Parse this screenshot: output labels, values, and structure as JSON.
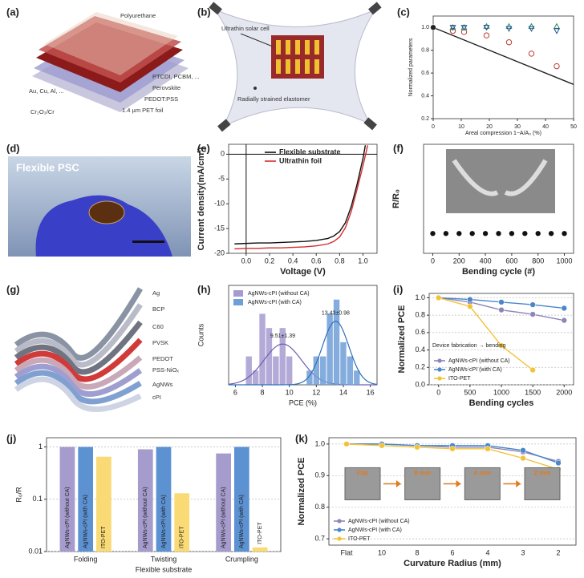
{
  "figures": [
    {
      "panel": "(a)",
      "labels": [
        "Polyurethane",
        "PTCDI, PCBM, ...",
        "Perovskite",
        "PEDOT:PSS",
        "1.4 µm PET foil",
        "Au, Cu, Al, ...",
        "Cr₂O₃/Cr"
      ]
    },
    {
      "panel": "(b)",
      "labels": [
        "Ultrathin solar cell",
        "Radially strained elastomer"
      ]
    },
    {
      "panel": "(d)",
      "labels": [
        "Flexible PSC"
      ]
    },
    {
      "panel": "(g)",
      "labels": [
        "Ag",
        "BCP",
        "C60",
        "PVSK",
        "PEDOT",
        "PSS-NiOₓ",
        "AgNWs",
        "cPI"
      ]
    }
  ],
  "chart_data": [
    {
      "panel": "(c)",
      "type": "scatter",
      "xlabel": "Areal compression 1−A/A₀ (%)",
      "ylabel": "Normalized parameters",
      "xlim": [
        0,
        50
      ],
      "xticks": [
        0,
        10,
        20,
        30,
        40,
        50
      ],
      "ylim": [
        0.2,
        1.1
      ],
      "yticks": [
        0.2,
        0.4,
        0.6,
        0.8,
        {
          "value": 1,
          "label": "1.0"
        }
      ],
      "series": [
        {
          "color": "#c0392b",
          "marker": "circle-open",
          "x": [
            7,
            11,
            19,
            27,
            35,
            44
          ],
          "values": [
            0.97,
            0.96,
            0.93,
            0.87,
            0.77,
            0.66
          ]
        },
        {
          "color": "#2e8b57",
          "marker": "triangle-open",
          "x": [
            7,
            11,
            19,
            27,
            35,
            44
          ],
          "values": [
            1,
            1,
            1.01,
            1.01,
            1.01,
            1.01
          ]
        },
        {
          "color": "#1f4e9c",
          "marker": "triangle-down-open",
          "x": [
            7,
            11,
            19,
            27,
            35,
            44
          ],
          "values": [
            1,
            1,
            1,
            0.99,
            0.99,
            0.97
          ]
        },
        {
          "color": "#222222",
          "style": "line",
          "marker": "dot-first",
          "x": [
            0,
            50
          ],
          "values": [
            1,
            0.5
          ]
        }
      ]
    },
    {
      "panel": "(e)",
      "type": "line",
      "xlabel": "Voltage (V)",
      "ylabel": "Current density(mA/cm²)",
      "zero_lines": true,
      "legend": "upper right",
      "xlim": [
        -0.15,
        1.12
      ],
      "xticks": [
        {
          "value": 0,
          "label": "0.0"
        },
        {
          "value": 0.2,
          "label": "0.2"
        },
        {
          "value": 0.4,
          "label": "0.4"
        },
        {
          "value": 0.6,
          "label": "0.6"
        },
        {
          "value": 0.8,
          "label": "0.8"
        },
        {
          "value": 1,
          "label": "1.0"
        }
      ],
      "ylim": [
        -20,
        2
      ],
      "yticks": [
        -20,
        -15,
        -10,
        -5,
        0
      ],
      "series": [
        {
          "name": "Flexible substrate",
          "color": "#111111",
          "x": [
            -0.1,
            0,
            0.1,
            0.2,
            0.3,
            0.4,
            0.5,
            0.6,
            0.7,
            0.75,
            0.8,
            0.85,
            0.9,
            0.95,
            1,
            1.02
          ],
          "values": [
            -18.1,
            -18,
            -17.9,
            -17.9,
            -17.8,
            -17.7,
            -17.6,
            -17.4,
            -17,
            -16.5,
            -15.6,
            -13.8,
            -10.5,
            -6,
            -0.8,
            1.8
          ]
        },
        {
          "name": "Ultrathin foil",
          "color": "#d62b2b",
          "x": [
            -0.1,
            0,
            0.1,
            0.2,
            0.3,
            0.4,
            0.5,
            0.6,
            0.7,
            0.75,
            0.8,
            0.85,
            0.9,
            0.95,
            1,
            1.04
          ],
          "values": [
            -19.1,
            -19,
            -19,
            -18.9,
            -18.9,
            -18.8,
            -18.7,
            -18.5,
            -18.1,
            -17.6,
            -16.7,
            -14.8,
            -11.5,
            -7,
            -2.3,
            1.8
          ]
        }
      ]
    },
    {
      "panel": "(f)",
      "type": "scatter",
      "xlabel": "Bending cycle (#)",
      "ylabel": "R/R₀",
      "xlim": [
        -70,
        1070
      ],
      "xticks": [
        0,
        200,
        400,
        600,
        800,
        1000
      ],
      "ylim": [
        0,
        5.5
      ],
      "series": [
        {
          "color": "#111111",
          "marker": "dot",
          "x": [
            0,
            100,
            200,
            300,
            400,
            500,
            600,
            700,
            800,
            900,
            1000
          ],
          "values": [
            1,
            1,
            1,
            1,
            1,
            1,
            1,
            1,
            1,
            1,
            1
          ]
        }
      ]
    },
    {
      "panel": "(h)",
      "type": "histogram",
      "xlabel": "PCE (%)",
      "ylabel": "Counts",
      "legend": "upper left",
      "xlim": [
        5.5,
        16.5
      ],
      "xticks": [
        6,
        8,
        10,
        12,
        14,
        16
      ],
      "ylim": [
        0,
        7
      ],
      "series": [
        {
          "name": "AgNWs-cPI (without CA)",
          "color": "#a69bd0",
          "line_color": "#6d5fb0",
          "bins": [
            6.75,
            7.25,
            7.75,
            8.25,
            8.75,
            9.25,
            9.75,
            10.25
          ],
          "values": [
            2,
            1,
            5,
            4,
            2,
            4,
            2
          ],
          "fit": {
            "mean": 9.51,
            "sd": 1.39,
            "label": "9.51±1.39"
          }
        },
        {
          "name": "AgNWs-cPI (with CA)",
          "color": "#6f9fd8",
          "line_color": "#2f6fba",
          "bins": [
            11.25,
            11.75,
            12.25,
            12.75,
            13.25,
            13.75,
            14.25,
            14.75,
            15.25
          ],
          "values": [
            1,
            2,
            2,
            5,
            6,
            3,
            2,
            1
          ],
          "fit": {
            "mean": 13.43,
            "sd": 0.98,
            "label": "13.43±0.98"
          }
        }
      ]
    },
    {
      "panel": "(i)",
      "type": "line",
      "xlabel": "Bending cycles",
      "ylabel": "Normalized PCE",
      "grid": true,
      "legend": "lower left",
      "annotation": "Device fabrication → bending",
      "xlim": [
        -150,
        2150
      ],
      "xticks": [
        0,
        500,
        1000,
        1500,
        2000
      ],
      "ylim": [
        0,
        1.05
      ],
      "yticks": [
        {
          "value": 0,
          "label": "0.0"
        },
        {
          "value": 0.2,
          "label": "0.2"
        },
        {
          "value": 0.4,
          "label": "0.4"
        },
        {
          "value": 0.6,
          "label": "0.6"
        },
        {
          "value": 0.8,
          "label": "0.8"
        },
        {
          "value": 1,
          "label": "1.0"
        }
      ],
      "series": [
        {
          "name": "AgNWs-cPI (without CA)",
          "color": "#8e86b8",
          "x": [
            0,
            500,
            1000,
            1500,
            2000
          ],
          "values": [
            1,
            0.95,
            0.86,
            0.81,
            0.74
          ]
        },
        {
          "name": "AgNWs-cPI (with CA)",
          "color": "#4a86c8",
          "x": [
            0,
            500,
            1000,
            1500,
            2000
          ],
          "values": [
            1,
            0.98,
            0.95,
            0.92,
            0.88
          ]
        },
        {
          "name": "ITO-PET",
          "color": "#f2c23a",
          "x": [
            0,
            500,
            1000,
            1500,
            2000
          ],
          "values": [
            1,
            0.9,
            0.45,
            0.17,
            null
          ]
        }
      ]
    },
    {
      "panel": "(j)",
      "type": "bar",
      "log_scale": true,
      "grid": true,
      "xlabel": "Flexible substrate",
      "ylabel": "R₀/R",
      "categories": [
        "Folding",
        "Twisting",
        "Crumpling"
      ],
      "ylim": [
        0.01,
        1.5
      ],
      "yticks": [
        0.01,
        0.1,
        1
      ],
      "series": [
        {
          "name": "AgNWs-cPI (without CA)",
          "color": "#a59bcc",
          "values": [
            1,
            0.9,
            0.75
          ]
        },
        {
          "name": "AgNWs-cPI (with CA)",
          "color": "#5c91d2",
          "values": [
            1,
            1,
            1
          ]
        },
        {
          "name": "ITO-PET",
          "color": "#f9da74",
          "values": [
            0.65,
            0.13,
            0.012
          ]
        }
      ]
    },
    {
      "panel": "(k)",
      "type": "line",
      "xlabel": "Curvature Radius (mm)",
      "ylabel": "Normalized PCE",
      "grid": true,
      "legend": "lower left",
      "categories": [
        "Flat",
        "10",
        "8",
        "6",
        "4",
        "3",
        "2"
      ],
      "ylim": [
        0.68,
        1.02
      ],
      "yticks": [
        {
          "value": 0.7,
          "label": "0.7"
        },
        {
          "value": 0.8,
          "label": "0.8"
        },
        {
          "value": 0.9,
          "label": "0.9"
        },
        {
          "value": 1,
          "label": "1.0"
        }
      ],
      "inset_labels": [
        "Flat",
        "8 mm",
        "4 mm",
        "2 mm"
      ],
      "series": [
        {
          "name": "AgNWs-cPI (without CA)",
          "color": "#8e86b8",
          "values": [
            1,
            1,
            0.995,
            0.99,
            0.99,
            0.975,
            0.945
          ]
        },
        {
          "name": "AgNWs-cPI (with CA)",
          "color": "#4a86c8",
          "values": [
            1,
            1,
            0.995,
            0.995,
            0.995,
            0.98,
            0.94
          ]
        },
        {
          "name": "ITO-PET",
          "color": "#f2c23a",
          "values": [
            1,
            0.995,
            0.99,
            0.985,
            0.985,
            0.955,
            0.92
          ]
        }
      ]
    }
  ]
}
